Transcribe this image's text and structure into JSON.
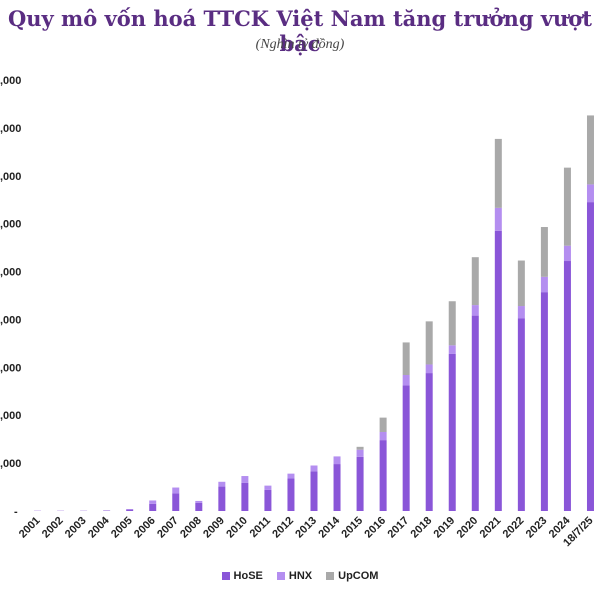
{
  "header": {
    "title": "Quy mô vốn hoá TTCK Việt Nam tăng trưởng vượt bậc",
    "subtitle": "(Nghìn tỷ đồng)"
  },
  "colors": {
    "HoSE": "#8a56d8",
    "HNX": "#b48ef0",
    "UpCOM": "#a9a9a9"
  },
  "chart_data": {
    "type": "bar",
    "stacked": true,
    "categories": [
      "2001",
      "2002",
      "2003",
      "2004",
      "2005",
      "2006",
      "2007",
      "2008",
      "2009",
      "2010",
      "2011",
      "2012",
      "2013",
      "2014",
      "2015",
      "2016",
      "2017",
      "2018",
      "2019",
      "2020",
      "2021",
      "2022",
      "2023",
      "2024",
      "18/7/25"
    ],
    "y_tick_labels": [
      "-",
      ",000",
      ",000",
      ",000",
      ",000",
      ",000",
      ",000",
      ",000",
      ",000",
      ",000"
    ],
    "ylim": [
      0,
      9000
    ],
    "legend_position": "bottom",
    "series": [
      {
        "name": "HoSE",
        "values": [
          5,
          5,
          5,
          10,
          30,
          150,
          370,
          170,
          510,
          590,
          440,
          680,
          830,
          980,
          1130,
          1480,
          2620,
          2880,
          3280,
          4080,
          5850,
          4020,
          4570,
          5220,
          6450
        ]
      },
      {
        "name": "HNX",
        "values": [
          0,
          0,
          0,
          0,
          10,
          70,
          120,
          40,
          100,
          140,
          90,
          100,
          120,
          160,
          150,
          170,
          220,
          180,
          180,
          220,
          480,
          260,
          320,
          320,
          370
        ]
      },
      {
        "name": "UpCOM",
        "values": [
          0,
          0,
          0,
          0,
          0,
          0,
          0,
          0,
          0,
          0,
          0,
          0,
          0,
          0,
          60,
          300,
          680,
          900,
          920,
          1000,
          1440,
          950,
          1040,
          1630,
          1440
        ]
      }
    ]
  }
}
